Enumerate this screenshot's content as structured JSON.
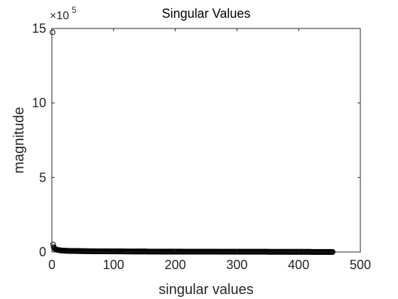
{
  "chart_data": {
    "type": "scatter",
    "title": "Singular Values",
    "xlabel": "singular values",
    "ylabel": "magnitude",
    "xlim": [
      0,
      500
    ],
    "ylim": [
      0,
      1500000
    ],
    "x_ticks": [
      0,
      100,
      200,
      300,
      400,
      500
    ],
    "y_ticks": [
      0,
      500000,
      1000000,
      1500000
    ],
    "x_tick_labels": [
      "0",
      "100",
      "200",
      "300",
      "400",
      "500"
    ],
    "y_tick_labels": [
      "0",
      "5",
      "10",
      "15"
    ],
    "y_exponent_base": "×10",
    "y_exponent_power": "5",
    "marker": "circle-open",
    "marker_color": "#000000",
    "grid": false,
    "series": [
      {
        "x": [
          1,
          2,
          3,
          4,
          5,
          6,
          7,
          8,
          9,
          10,
          12,
          14,
          16,
          18,
          20,
          25,
          30,
          40,
          50,
          60,
          70,
          80,
          90,
          100,
          120,
          140,
          160,
          180,
          200,
          220,
          240,
          260,
          280,
          300,
          320,
          340,
          360,
          380,
          400,
          420,
          440,
          455
        ],
        "y": [
          1475000,
          50000,
          32000,
          26000,
          22000,
          19000,
          17000,
          15500,
          14500,
          13500,
          12000,
          11000,
          10000,
          9500,
          9000,
          8000,
          7500,
          6500,
          6000,
          5500,
          5000,
          4700,
          4400,
          4200,
          3800,
          3500,
          3200,
          3000,
          2800,
          2600,
          2400,
          2200,
          2000,
          1900,
          1700,
          1600,
          1400,
          1300,
          1100,
          900,
          600,
          300
        ]
      }
    ]
  }
}
